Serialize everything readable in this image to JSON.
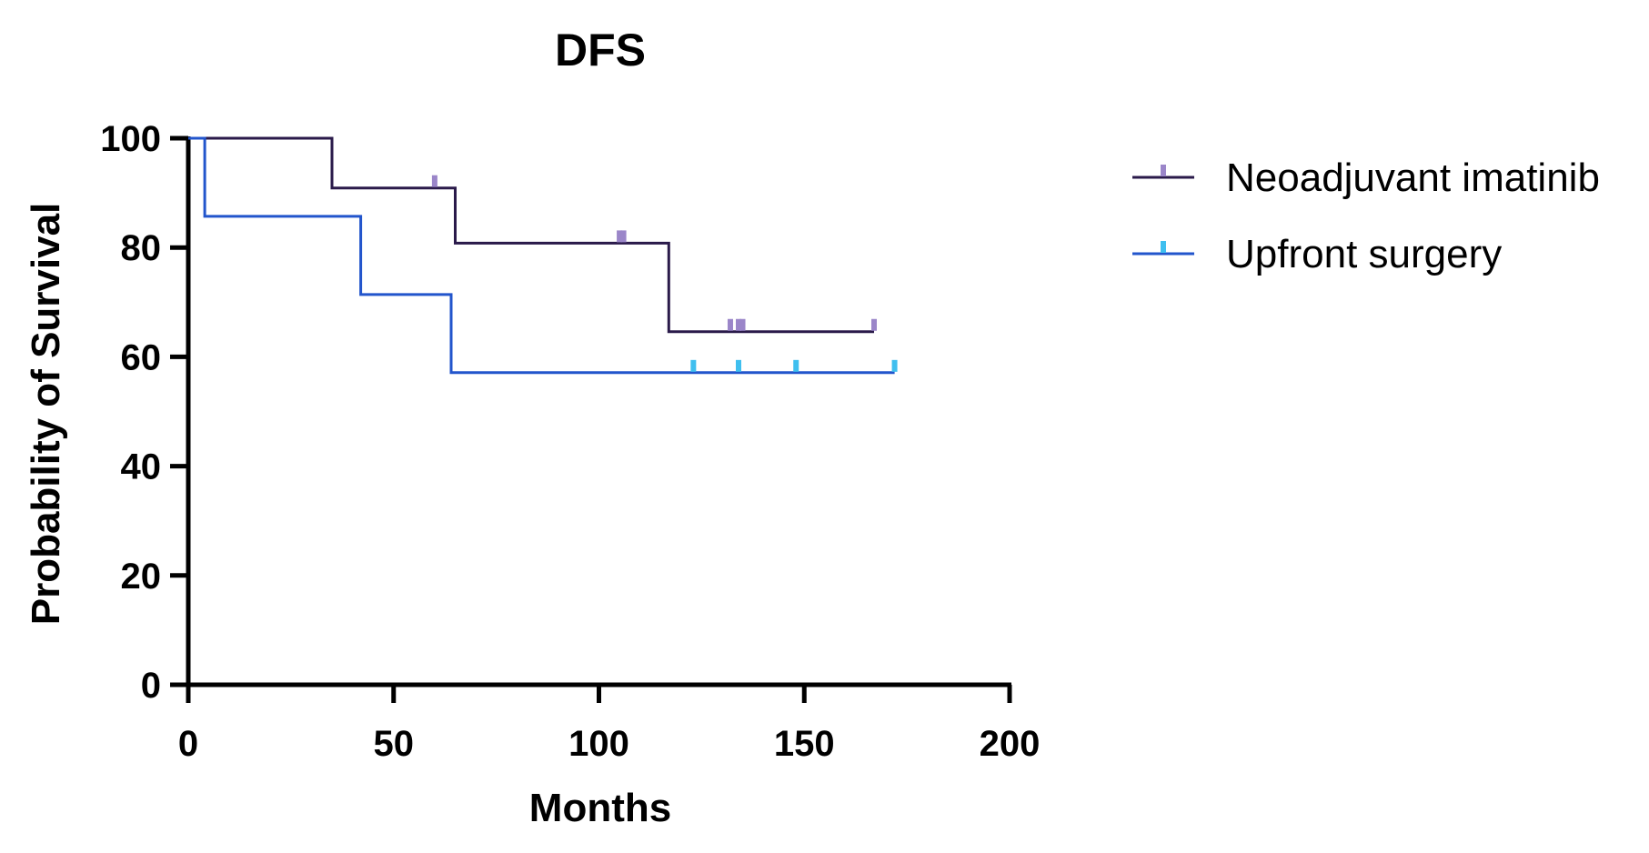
{
  "chart_data": {
    "type": "line",
    "subtype": "kaplan-meier step",
    "title": "DFS",
    "xlabel": "Months",
    "ylabel": "Probability of Survival",
    "xlim": [
      0,
      200
    ],
    "ylim": [
      0,
      100
    ],
    "x_ticks": [
      "0",
      "50",
      "100",
      "150",
      "200"
    ],
    "y_ticks": [
      "0",
      "20",
      "40",
      "60",
      "80",
      "100"
    ],
    "x_tick_values": [
      0,
      50,
      100,
      150,
      200
    ],
    "y_tick_values": [
      0,
      20,
      40,
      60,
      80,
      100
    ],
    "grid": false,
    "legend_position": "right",
    "series": [
      {
        "name": "Neoadjuvant imatinib",
        "line_color": "#2a1a4a",
        "censor_color": "#9b86c9",
        "steps": [
          [
            0,
            100
          ],
          [
            35,
            100
          ],
          [
            35,
            90.9
          ],
          [
            65,
            90.9
          ],
          [
            65,
            80.8
          ],
          [
            117,
            80.8
          ],
          [
            117,
            64.6
          ],
          [
            167,
            64.6
          ]
        ],
        "censored": [
          [
            60,
            90.9
          ],
          [
            105,
            80.8
          ],
          [
            106,
            80.8
          ],
          [
            132,
            64.6
          ],
          [
            134,
            64.6
          ],
          [
            135,
            64.6
          ],
          [
            167,
            64.6
          ]
        ]
      },
      {
        "name": "Upfront surgery",
        "line_color": "#2255cc",
        "censor_color": "#3fbfef",
        "steps": [
          [
            0,
            100
          ],
          [
            4,
            100
          ],
          [
            4,
            85.7
          ],
          [
            42,
            85.7
          ],
          [
            42,
            71.4
          ],
          [
            64,
            71.4
          ],
          [
            64,
            57.1
          ],
          [
            172,
            57.1
          ]
        ],
        "censored": [
          [
            123,
            57.1
          ],
          [
            134,
            57.1
          ],
          [
            148,
            57.1
          ],
          [
            172,
            57.1
          ]
        ]
      }
    ]
  }
}
